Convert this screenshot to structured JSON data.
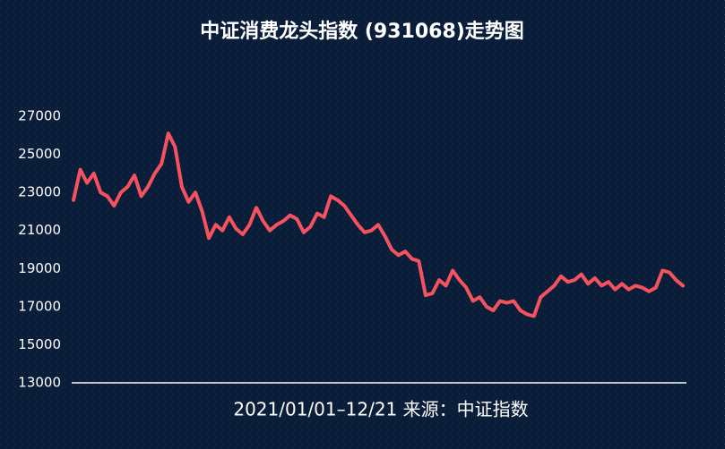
{
  "chart_data": {
    "type": "line",
    "title": "中证消费龙头指数 (931068)走势图",
    "x_label": "2021/01/01–12/21 来源：中证指数",
    "series": [
      {
        "name": "中证消费龙头指数",
        "color": "#f4525e",
        "values": [
          22600,
          24200,
          23500,
          24000,
          23000,
          22800,
          22300,
          23000,
          23300,
          23900,
          22800,
          23300,
          24000,
          24500,
          26100,
          25400,
          23300,
          22500,
          23000,
          22000,
          20600,
          21300,
          21000,
          21700,
          21100,
          20800,
          21300,
          22200,
          21500,
          21000,
          21300,
          21500,
          21800,
          21600,
          20900,
          21200,
          21900,
          21700,
          22800,
          22600,
          22300,
          21800,
          21300,
          20900,
          21000,
          21300,
          20700,
          20000,
          19700,
          19900,
          19500,
          19400,
          17600,
          17700,
          18400,
          18100,
          18900,
          18400,
          18000,
          17300,
          17500,
          17000,
          16800,
          17300,
          17200,
          17300,
          16800,
          16600,
          16500,
          17500,
          17800,
          18100,
          18600,
          18300,
          18400,
          18700,
          18200,
          18500,
          18100,
          18300,
          17900,
          18200,
          17900,
          18100,
          18000,
          17800,
          18000,
          18900,
          18800,
          18400,
          18100
        ]
      }
    ],
    "ylim": [
      13000,
      27000
    ],
    "yticks": [
      13000,
      15000,
      17000,
      19000,
      21000,
      23000,
      25000,
      27000
    ]
  }
}
